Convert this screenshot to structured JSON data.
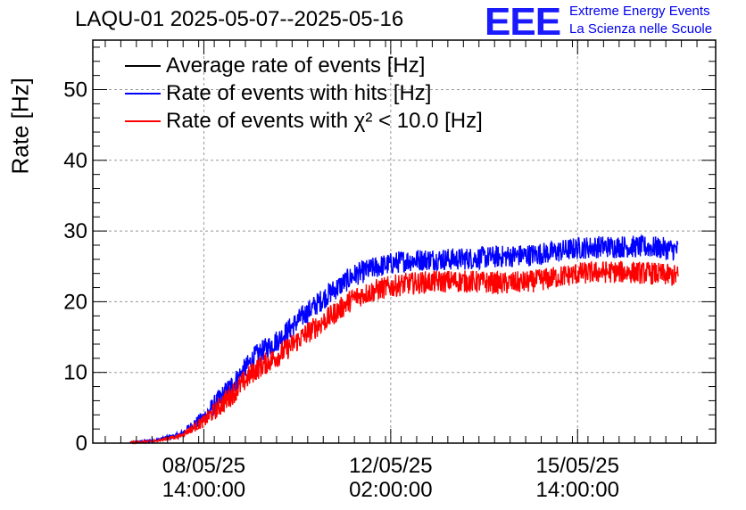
{
  "header": {
    "title": "LAQU-01 2025-05-07--2025-05-16",
    "logo_text": "EEE",
    "brand_line1": "Extreme Energy Events",
    "brand_line2": "La Scienza nelle Scuole"
  },
  "colors": {
    "average": "#000000",
    "hits": "#0000ff",
    "chi2": "#ff0000",
    "grid": "#999999"
  },
  "chart_data": {
    "type": "line",
    "title": "LAQU-01 2025-05-07--2025-05-16",
    "xlabel": "",
    "ylabel": "Rate [Hz]",
    "ylim": [
      0,
      57
    ],
    "yticks": [
      0,
      10,
      20,
      30,
      40,
      50
    ],
    "x_unit": "days since 2025-05-07 00:00",
    "xlim": [
      -0.2,
      9.8
    ],
    "xticks": [
      {
        "x": 1.583,
        "line1": "08/05/25",
        "line2": "14:00:00"
      },
      {
        "x": 4.583,
        "line1": "12/05/25",
        "line2": "02:00:00"
      },
      {
        "x": 7.583,
        "line1": "15/05/25",
        "line2": "14:00:00"
      }
    ],
    "grid": true,
    "legend_position": "top-left",
    "series": [
      {
        "name": "Average rate of events [Hz]",
        "color_key": "average",
        "x": [
          0.4,
          9.2
        ],
        "values": [
          null,
          null
        ]
      },
      {
        "name": "Rate of events with hits [Hz]",
        "color_key": "hits",
        "x": [
          0.4,
          0.8,
          1.2,
          1.6,
          2.0,
          2.4,
          2.8,
          3.2,
          3.6,
          4.0,
          4.4,
          4.8,
          5.2,
          5.6,
          6.0,
          6.4,
          6.8,
          7.2,
          7.6,
          8.0,
          8.4,
          8.8,
          9.2
        ],
        "values": [
          0.1,
          0.4,
          1.2,
          3.8,
          7.8,
          12.2,
          14.8,
          18.2,
          21.2,
          23.8,
          25.0,
          25.8,
          26.0,
          26.0,
          26.2,
          26.4,
          26.6,
          27.0,
          27.6,
          27.8,
          27.8,
          27.7,
          27.3
        ],
        "noise": 1.0
      },
      {
        "name": "Rate of events with χ² < 10.0 [Hz]",
        "color_key": "chi2",
        "x": [
          0.4,
          0.8,
          1.2,
          1.6,
          2.0,
          2.4,
          2.8,
          3.2,
          3.6,
          4.0,
          4.4,
          4.8,
          5.2,
          5.6,
          6.0,
          6.4,
          6.8,
          7.2,
          7.6,
          8.0,
          8.4,
          8.8,
          9.2
        ],
        "values": [
          0.1,
          0.3,
          1.0,
          3.2,
          6.6,
          10.3,
          12.5,
          15.3,
          17.8,
          20.6,
          21.8,
          22.5,
          22.8,
          22.9,
          22.8,
          22.6,
          22.8,
          23.4,
          24.0,
          24.2,
          24.2,
          24.0,
          23.6
        ],
        "noise": 1.0
      }
    ]
  },
  "legend": {
    "average": "Average rate of events [Hz]",
    "hits": "Rate of events with hits [Hz]",
    "chi2": "Rate of events with χ² < 10.0 [Hz]"
  }
}
